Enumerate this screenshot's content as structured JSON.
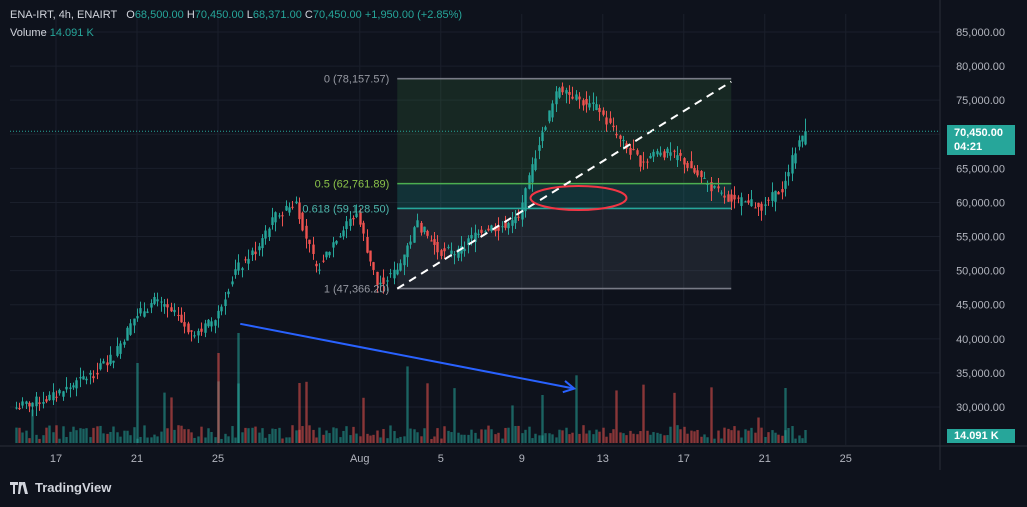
{
  "header": {
    "symbol": "ENA-IRT, 4h, ENAIRT",
    "open_label": "O",
    "open": "68,500.00",
    "high_label": "H",
    "high": "70,450.00",
    "low_label": "L",
    "low": "68,371.00",
    "close_label": "C",
    "close": "70,450.00",
    "change": "+1,950.00 (+2.85%)",
    "volume_label": "Volume",
    "volume": "14.091 K"
  },
  "price_tag": {
    "price": "70,450.00",
    "countdown": "04:21"
  },
  "volume_tag": "14.091 K",
  "brand": "TradingView",
  "colors": {
    "up": "#26a69a",
    "down": "#ef5350",
    "background": "#0e121c",
    "fib_green": "#4caf50",
    "arrow": "#2962ff",
    "ellipse": "#f23645"
  },
  "chart_data": {
    "type": "candlestick",
    "y_axis_ticks": [
      "85,000.00",
      "80,000.00",
      "75,000.00",
      "70,000.00",
      "65,000.00",
      "60,000.00",
      "55,000.00",
      "50,000.00",
      "45,000.00",
      "40,000.00",
      "35,000.00",
      "30,000.00"
    ],
    "y_axis_values": [
      85000,
      80000,
      75000,
      70000,
      65000,
      60000,
      55000,
      50000,
      45000,
      40000,
      35000,
      30000
    ],
    "x_axis_ticks": [
      "17",
      "21",
      "25",
      "Aug",
      "5",
      "9",
      "13",
      "17",
      "21",
      "25"
    ],
    "ylim": [
      25000,
      88000
    ],
    "path_anchors": [
      [
        "Jul 15",
        29800
      ],
      [
        "Jul 17",
        31500
      ],
      [
        "Jul 19",
        35000
      ],
      [
        "Jul 20",
        37500
      ],
      [
        "Jul 21",
        43000
      ],
      [
        "Jul 22",
        45500
      ],
      [
        "Jul 23",
        43500
      ],
      [
        "Jul 24",
        40500
      ],
      [
        "Jul 25",
        43000
      ],
      [
        "Jul 26",
        50000
      ],
      [
        "Jul 27",
        53000
      ],
      [
        "Jul 28",
        58000
      ],
      [
        "Jul 29",
        60000
      ],
      [
        "Jul 30",
        50000
      ],
      [
        "Jul 31",
        55000
      ],
      [
        "Aug 1",
        58500
      ],
      [
        "Aug 2",
        48000
      ],
      [
        "Aug 3",
        50000
      ],
      [
        "Aug 4",
        57000
      ],
      [
        "Aug 5",
        53000
      ],
      [
        "Aug 6",
        52500
      ],
      [
        "Aug 7",
        56000
      ],
      [
        "Aug 8",
        56500
      ],
      [
        "Aug 9",
        57500
      ],
      [
        "Aug 10",
        69000
      ],
      [
        "Aug 11",
        77000
      ],
      [
        "Aug 12",
        75000
      ],
      [
        "Aug 13",
        73500
      ],
      [
        "Aug 14",
        69000
      ],
      [
        "Aug 15",
        66000
      ],
      [
        "Aug 16",
        67500
      ],
      [
        "Aug 17",
        66500
      ],
      [
        "Aug 18",
        63500
      ],
      [
        "Aug 19",
        61000
      ],
      [
        "Aug 20",
        60000
      ],
      [
        "Aug 21",
        59500
      ],
      [
        "Aug 22",
        62000
      ],
      [
        "Aug 23",
        70450
      ]
    ],
    "fibonacci": {
      "levels": [
        {
          "label": "0 (78,157.57)",
          "ratio": 0,
          "price": 78157.57
        },
        {
          "label": "0.5 (62,761.89)",
          "ratio": 0.5,
          "price": 62761.89
        },
        {
          "label": "0.618 (59,128.50)",
          "ratio": 0.618,
          "price": 59128.5
        },
        {
          "label": "1 (47,366.20)",
          "ratio": 1,
          "price": 47366.2
        }
      ]
    },
    "last_price": 70450.0,
    "last_volume": "14.091 K"
  }
}
